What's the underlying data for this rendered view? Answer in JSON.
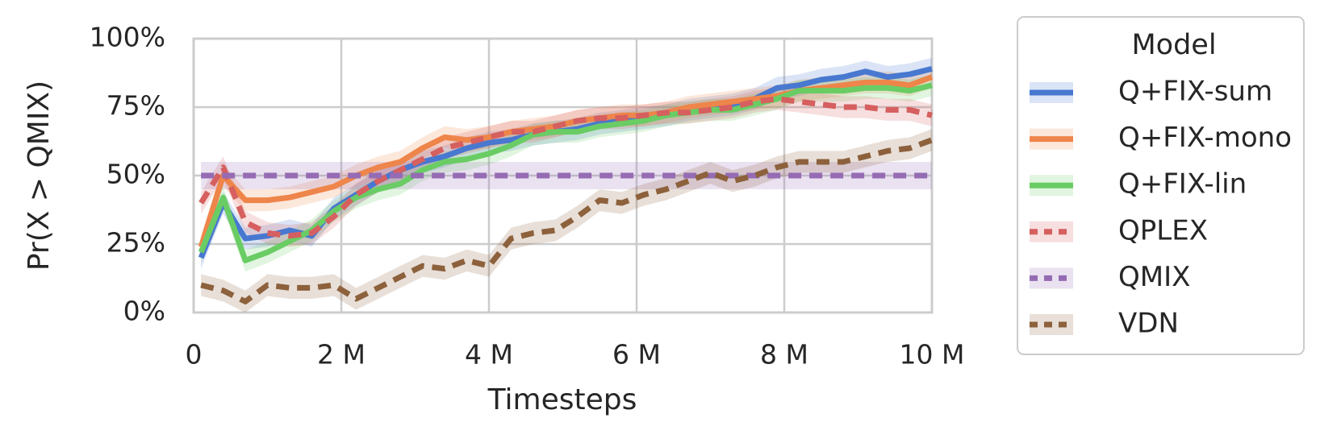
{
  "chart_data": {
    "type": "line",
    "xlabel": "Timesteps",
    "ylabel": "Pr(X > QMIX)",
    "legend_title": "Model",
    "legend": "outside-right",
    "grid": true,
    "xlim": [
      0,
      10000000
    ],
    "xticks": [
      0,
      {
        "value": 2000000,
        "label": "2 M"
      },
      {
        "value": 4000000,
        "label": "4 M"
      },
      {
        "value": 6000000,
        "label": "6 M"
      },
      {
        "value": 8000000,
        "label": "8 M"
      },
      {
        "value": 10000000,
        "label": "10 M"
      }
    ],
    "ylim": [
      0,
      100
    ],
    "yticks": [
      {
        "value": 0,
        "label": "0%"
      },
      {
        "value": 25,
        "label": "25%"
      },
      {
        "value": 50,
        "label": "50%"
      },
      {
        "value": 75,
        "label": "75%"
      },
      {
        "value": 100,
        "label": "100%"
      }
    ],
    "x": [
      100000,
      400000,
      700000,
      1000000,
      1300000,
      1600000,
      1900000,
      2200000,
      2500000,
      2800000,
      3100000,
      3400000,
      3700000,
      4000000,
      4300000,
      4600000,
      4900000,
      5200000,
      5500000,
      5800000,
      6100000,
      6400000,
      6700000,
      7000000,
      7300000,
      7600000,
      7900000,
      8200000,
      8500000,
      8800000,
      9100000,
      9400000,
      9700000,
      10000000
    ],
    "series": [
      {
        "name": "Q+FIX-sum",
        "color": "#4878d0",
        "linestyle": "solid",
        "ci": 4,
        "values": [
          20,
          40,
          27,
          28,
          30,
          28,
          38,
          43,
          48,
          52,
          55,
          57,
          60,
          62,
          63,
          65,
          66,
          67,
          69,
          70,
          71,
          72,
          74,
          75,
          76,
          78,
          82,
          83,
          85,
          86,
          88,
          86,
          87,
          89
        ]
      },
      {
        "name": "Q+FIX-mono",
        "color": "#ee854a",
        "linestyle": "solid",
        "ci": 4,
        "values": [
          24,
          50,
          41,
          41,
          42,
          44,
          46,
          50,
          53,
          55,
          60,
          64,
          63,
          64,
          66,
          67,
          68,
          70,
          71,
          72,
          72,
          73,
          75,
          76,
          77,
          78,
          79,
          81,
          82,
          83,
          84,
          84,
          83,
          86
        ]
      },
      {
        "name": "Q+FIX-lin",
        "color": "#6acc64",
        "linestyle": "solid",
        "ci": 4,
        "values": [
          22,
          42,
          19,
          22,
          26,
          30,
          37,
          42,
          45,
          47,
          52,
          55,
          56,
          58,
          61,
          65,
          66,
          66,
          68,
          69,
          70,
          72,
          73,
          74,
          74,
          76,
          78,
          81,
          81,
          81,
          82,
          82,
          81,
          83
        ]
      },
      {
        "name": "QPLEX",
        "color": "#d65f5f",
        "linestyle": "dashed",
        "ci": 4,
        "values": [
          40,
          53,
          33,
          29,
          28,
          29,
          35,
          43,
          48,
          52,
          56,
          60,
          62,
          64,
          66,
          66,
          68,
          70,
          71,
          71,
          72,
          73,
          73,
          74,
          75,
          77,
          78,
          77,
          76,
          75,
          75,
          74,
          74,
          72
        ]
      },
      {
        "name": "QMIX",
        "color": "#956cb4",
        "linestyle": "dashed",
        "ci": 5,
        "values": [
          50,
          50,
          50,
          50,
          50,
          50,
          50,
          50,
          50,
          50,
          50,
          50,
          50,
          50,
          50,
          50,
          50,
          50,
          50,
          50,
          50,
          50,
          50,
          50,
          50,
          50,
          50,
          50,
          50,
          50,
          50,
          50,
          50,
          50
        ]
      },
      {
        "name": "VDN",
        "color": "#8c613c",
        "linestyle": "dashed",
        "ci": 4,
        "values": [
          10,
          8,
          4,
          10,
          9,
          9,
          10,
          5,
          9,
          13,
          17,
          16,
          19,
          17,
          27,
          29,
          30,
          35,
          41,
          40,
          43,
          45,
          48,
          51,
          48,
          50,
          53,
          55,
          55,
          55,
          57,
          59,
          60,
          63
        ]
      }
    ]
  }
}
